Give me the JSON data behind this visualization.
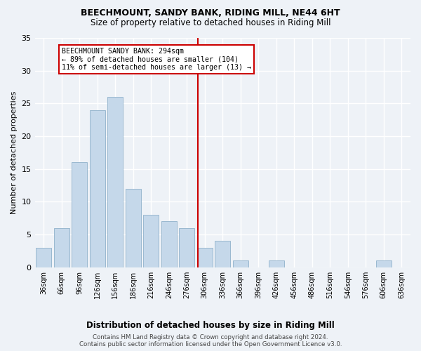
{
  "title": "BEECHMOUNT, SANDY BANK, RIDING MILL, NE44 6HT",
  "subtitle": "Size of property relative to detached houses in Riding Mill",
  "xlabel": "Distribution of detached houses by size in Riding Mill",
  "ylabel": "Number of detached properties",
  "bar_color": "#c5d8ea",
  "bar_edge_color": "#9ab8d0",
  "categories": [
    "36sqm",
    "66sqm",
    "96sqm",
    "126sqm",
    "156sqm",
    "186sqm",
    "216sqm",
    "246sqm",
    "276sqm",
    "306sqm",
    "336sqm",
    "366sqm",
    "396sqm",
    "426sqm",
    "456sqm",
    "486sqm",
    "516sqm",
    "546sqm",
    "576sqm",
    "606sqm",
    "636sqm"
  ],
  "values": [
    3,
    6,
    16,
    24,
    26,
    12,
    8,
    7,
    6,
    3,
    4,
    1,
    0,
    1,
    0,
    0,
    0,
    0,
    0,
    1,
    0
  ],
  "vline_pos": 8.6,
  "vline_color": "#cc0000",
  "annotation_text": "BEECHMOUNT SANDY BANK: 294sqm\n← 89% of detached houses are smaller (104)\n11% of semi-detached houses are larger (13) →",
  "ylim": [
    0,
    35
  ],
  "yticks": [
    0,
    5,
    10,
    15,
    20,
    25,
    30,
    35
  ],
  "footnote": "Contains HM Land Registry data © Crown copyright and database right 2024.\nContains public sector information licensed under the Open Government Licence v3.0.",
  "background_color": "#eef2f7",
  "grid_color": "#ffffff"
}
